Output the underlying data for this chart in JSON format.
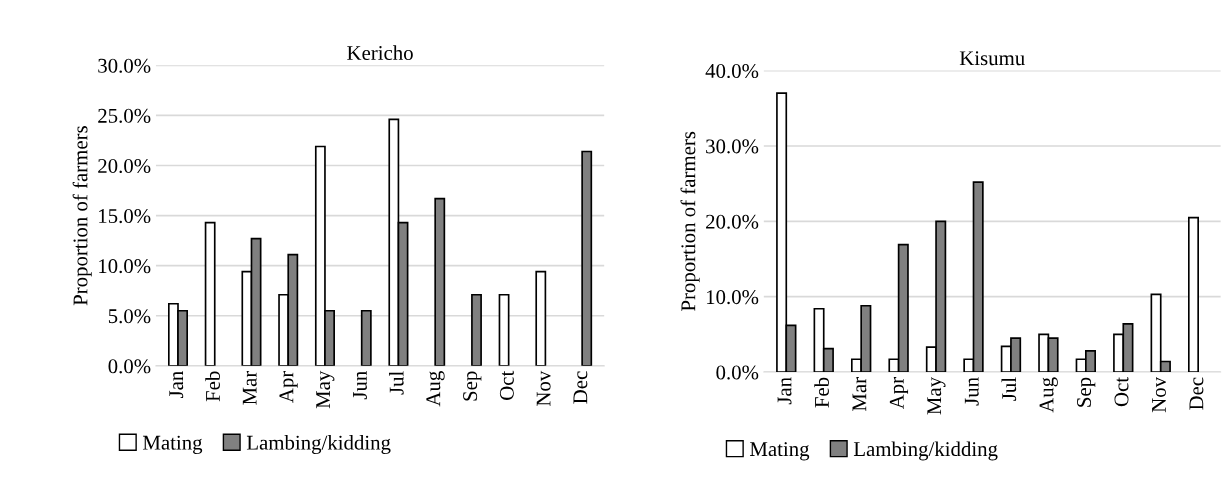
{
  "chart_data": [
    {
      "type": "bar",
      "title": "Kericho",
      "ylabel": "Proportion of farmers",
      "categories": [
        "Jan",
        "Feb",
        "Mar",
        "Apr",
        "May",
        "Jun",
        "Jul",
        "Aug",
        "Sep",
        "Oct",
        "Nov",
        "Dec"
      ],
      "series": [
        {
          "name": "Mating",
          "color": "#ffffff",
          "values": [
            6.2,
            14.3,
            9.4,
            7.1,
            21.9,
            null,
            24.6,
            null,
            null,
            7.1,
            9.4,
            null
          ]
        },
        {
          "name": "Lambing/kidding",
          "color": "#808080",
          "values": [
            5.5,
            null,
            12.7,
            11.1,
            5.5,
            5.5,
            14.3,
            16.7,
            7.1,
            null,
            null,
            21.4
          ]
        }
      ],
      "ylim": [
        0,
        30
      ],
      "yticks": [
        {
          "value": 0,
          "label": "0.0%"
        },
        {
          "value": 5,
          "label": "5.0%"
        },
        {
          "value": 10,
          "label": "10.0%"
        },
        {
          "value": 15,
          "label": "15.0%"
        },
        {
          "value": 20,
          "label": "20.0%"
        },
        {
          "value": 25,
          "label": "25.0%"
        },
        {
          "value": 30,
          "label": "30.0%"
        }
      ],
      "grid": "y",
      "legend": "bottom"
    },
    {
      "type": "bar",
      "title": "Kisumu",
      "ylabel": "Proportion of farmers",
      "categories": [
        "Jan",
        "Feb",
        "Mar",
        "Apr",
        "May",
        "Jun",
        "Jul",
        "Aug",
        "Sep",
        "Oct",
        "Nov",
        "Dec"
      ],
      "series": [
        {
          "name": "Mating",
          "color": "#ffffff",
          "values": [
            37.0,
            8.4,
            1.7,
            1.7,
            3.3,
            1.7,
            3.4,
            5.0,
            1.7,
            5.0,
            10.3,
            20.5
          ]
        },
        {
          "name": "Lambing/kidding",
          "color": "#808080",
          "values": [
            6.2,
            3.1,
            8.8,
            16.9,
            20.0,
            25.2,
            4.5,
            4.5,
            2.8,
            6.4,
            1.4,
            null
          ]
        }
      ],
      "ylim": [
        0,
        40
      ],
      "yticks": [
        {
          "value": 0,
          "label": "0.0%"
        },
        {
          "value": 10,
          "label": "10.0%"
        },
        {
          "value": 20,
          "label": "20.0%"
        },
        {
          "value": 30,
          "label": "30.0%"
        },
        {
          "value": 40,
          "label": "40.0%"
        }
      ],
      "grid": "y",
      "legend": "bottom"
    }
  ]
}
